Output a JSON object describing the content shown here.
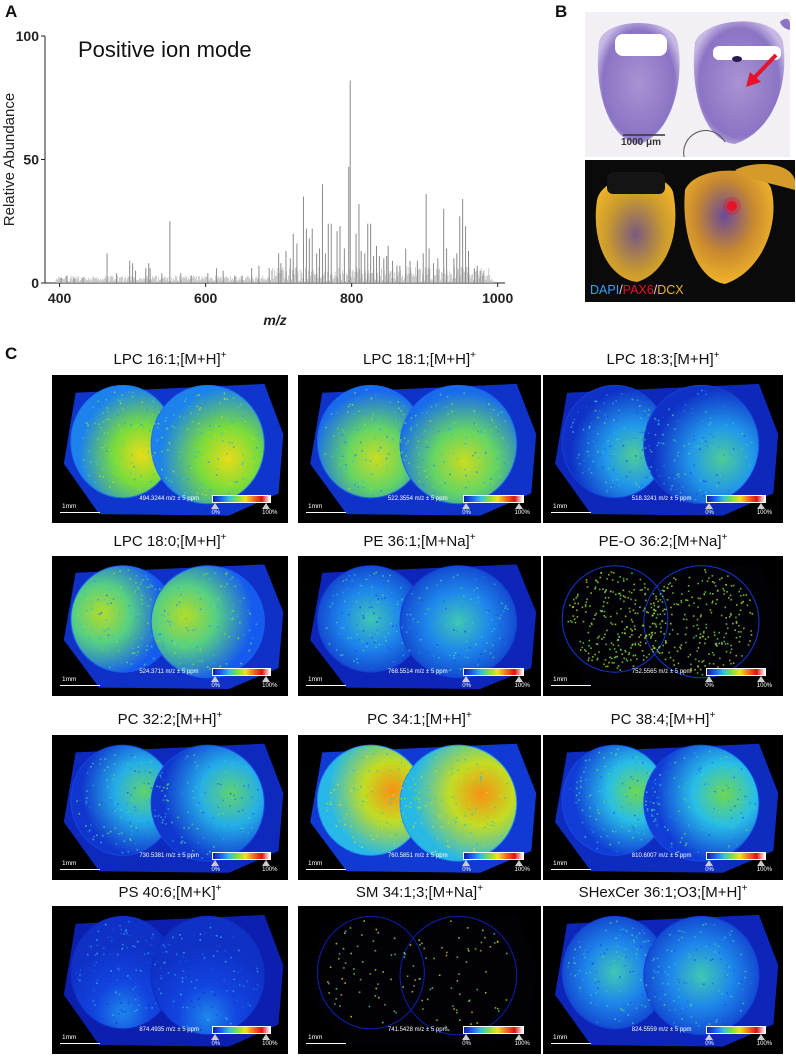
{
  "panels": {
    "a": "A",
    "b": "B",
    "c": "C"
  },
  "chart_data": {
    "type": "line",
    "title": "Positive ion mode",
    "xlabel": "m/z",
    "ylabel": "Relative Abundance",
    "xlim": [
      380,
      1010
    ],
    "ylim": [
      0,
      100
    ],
    "xticks": [
      "400",
      "600",
      "800",
      "1000"
    ],
    "yticks": [
      "0",
      "50",
      "100"
    ],
    "peaks": [
      {
        "mz": 402,
        "y": 2
      },
      {
        "mz": 410,
        "y": 3
      },
      {
        "mz": 420,
        "y": 2
      },
      {
        "mz": 432,
        "y": 2
      },
      {
        "mz": 465,
        "y": 12
      },
      {
        "mz": 478,
        "y": 4
      },
      {
        "mz": 496,
        "y": 9
      },
      {
        "mz": 500,
        "y": 8
      },
      {
        "mz": 504,
        "y": 5
      },
      {
        "mz": 518,
        "y": 6
      },
      {
        "mz": 522,
        "y": 8
      },
      {
        "mz": 524,
        "y": 6
      },
      {
        "mz": 540,
        "y": 4
      },
      {
        "mz": 551,
        "y": 25
      },
      {
        "mz": 566,
        "y": 4
      },
      {
        "mz": 580,
        "y": 3
      },
      {
        "mz": 603,
        "y": 4
      },
      {
        "mz": 615,
        "y": 6
      },
      {
        "mz": 624,
        "y": 5
      },
      {
        "mz": 640,
        "y": 3
      },
      {
        "mz": 650,
        "y": 3
      },
      {
        "mz": 663,
        "y": 6
      },
      {
        "mz": 673,
        "y": 7
      },
      {
        "mz": 687,
        "y": 6
      },
      {
        "mz": 700,
        "y": 12
      },
      {
        "mz": 703,
        "y": 8
      },
      {
        "mz": 710,
        "y": 13
      },
      {
        "mz": 716,
        "y": 10
      },
      {
        "mz": 720,
        "y": 20
      },
      {
        "mz": 725,
        "y": 16
      },
      {
        "mz": 734,
        "y": 35
      },
      {
        "mz": 738,
        "y": 22
      },
      {
        "mz": 742,
        "y": 18
      },
      {
        "mz": 746,
        "y": 22
      },
      {
        "mz": 752,
        "y": 12
      },
      {
        "mz": 756,
        "y": 14
      },
      {
        "mz": 760,
        "y": 40
      },
      {
        "mz": 764,
        "y": 12
      },
      {
        "mz": 768,
        "y": 24
      },
      {
        "mz": 772,
        "y": 24
      },
      {
        "mz": 780,
        "y": 21
      },
      {
        "mz": 784,
        "y": 23
      },
      {
        "mz": 790,
        "y": 14
      },
      {
        "mz": 796,
        "y": 47
      },
      {
        "mz": 798,
        "y": 82
      },
      {
        "mz": 806,
        "y": 20
      },
      {
        "mz": 810,
        "y": 32
      },
      {
        "mz": 813,
        "y": 13
      },
      {
        "mz": 818,
        "y": 12
      },
      {
        "mz": 822,
        "y": 24
      },
      {
        "mz": 826,
        "y": 24
      },
      {
        "mz": 830,
        "y": 11
      },
      {
        "mz": 834,
        "y": 15
      },
      {
        "mz": 838,
        "y": 11
      },
      {
        "mz": 844,
        "y": 10
      },
      {
        "mz": 848,
        "y": 11
      },
      {
        "mz": 850,
        "y": 15
      },
      {
        "mz": 856,
        "y": 9
      },
      {
        "mz": 862,
        "y": 7
      },
      {
        "mz": 866,
        "y": 7
      },
      {
        "mz": 874,
        "y": 14
      },
      {
        "mz": 880,
        "y": 9
      },
      {
        "mz": 890,
        "y": 9
      },
      {
        "mz": 898,
        "y": 12
      },
      {
        "mz": 902,
        "y": 36
      },
      {
        "mz": 906,
        "y": 14
      },
      {
        "mz": 912,
        "y": 8
      },
      {
        "mz": 918,
        "y": 10
      },
      {
        "mz": 926,
        "y": 30
      },
      {
        "mz": 930,
        "y": 14
      },
      {
        "mz": 940,
        "y": 10
      },
      {
        "mz": 944,
        "y": 12
      },
      {
        "mz": 948,
        "y": 27
      },
      {
        "mz": 952,
        "y": 34
      },
      {
        "mz": 956,
        "y": 23
      },
      {
        "mz": 960,
        "y": 13
      },
      {
        "mz": 968,
        "y": 6
      },
      {
        "mz": 972,
        "y": 7
      },
      {
        "mz": 976,
        "y": 5
      },
      {
        "mz": 980,
        "y": 4
      }
    ]
  },
  "histology": {
    "scale_bar_label": "1000 μm",
    "stain_legend": {
      "dapi": "DAPI",
      "sep1": "/",
      "pax6": "PAX6",
      "sep2": "/",
      "dcx": "DCX"
    },
    "colors": {
      "dapi": "#3aa0ff",
      "pax6": "#e8132a",
      "dcx": "#f0b429",
      "tissue": "#9a86c9"
    }
  },
  "msi": {
    "scale_label": "1mm",
    "cbar_min": "0%",
    "cbar_max": "100%",
    "images": [
      {
        "name": "LPC 16:1;[M+H]",
        "charge": "+",
        "mz": "494.3244 m/z ± 5 ppm",
        "intensity": 0.62,
        "hotspot": "bottom-right"
      },
      {
        "name": "LPC 18:1;[M+H]",
        "charge": "+",
        "mz": "522.3554 m/z ± 5 ppm",
        "intensity": 0.58,
        "hotspot": "bottom"
      },
      {
        "name": "LPC 18:3;[M+H]",
        "charge": "+",
        "mz": "518.3241 m/z ± 5 ppm",
        "intensity": 0.38,
        "hotspot": "bottom-right"
      },
      {
        "name": "LPC 18:0;[M+H]",
        "charge": "+",
        "mz": "524.3711 m/z ± 5 ppm",
        "intensity": 0.55,
        "hotspot": "left"
      },
      {
        "name": "PE 36:1;[M+Na]",
        "charge": "+",
        "mz": "768.5514 m/z ± 5 ppm",
        "intensity": 0.35,
        "hotspot": "center"
      },
      {
        "name": "PE-O 36:2;[M+Na]",
        "charge": "+",
        "mz": "752.5565 m/z ± 5 ppm",
        "intensity": 0.3,
        "hotspot": "center"
      },
      {
        "name": "PC 32:2;[M+H]",
        "charge": "+",
        "mz": "730.5381 m/z ± 5 ppm",
        "intensity": 0.42,
        "hotspot": "right"
      },
      {
        "name": "PC 34:1;[M+H]",
        "charge": "+",
        "mz": "760.5851 m/z ± 5 ppm",
        "intensity": 0.72,
        "hotspot": "right"
      },
      {
        "name": "PC 38:4;[M+H]",
        "charge": "+",
        "mz": "810.6007 m/z ± 5 ppm",
        "intensity": 0.45,
        "hotspot": "right"
      },
      {
        "name": "PS 40:6;[M+K]",
        "charge": "+",
        "mz": "874.4935 m/z ± 5 ppm",
        "intensity": 0.2,
        "hotspot": "edge"
      },
      {
        "name": "SM 34:1;3;[M+Na]",
        "charge": "+",
        "mz": "741.5428 m/z ± 5 ppm",
        "intensity": 0.1,
        "hotspot": "top-right"
      },
      {
        "name": "SHexCer 36:1;O3;[M+H]",
        "charge": "+",
        "mz": "824.5559 m/z ± 5 ppm",
        "intensity": 0.35,
        "hotspot": "center"
      }
    ]
  }
}
